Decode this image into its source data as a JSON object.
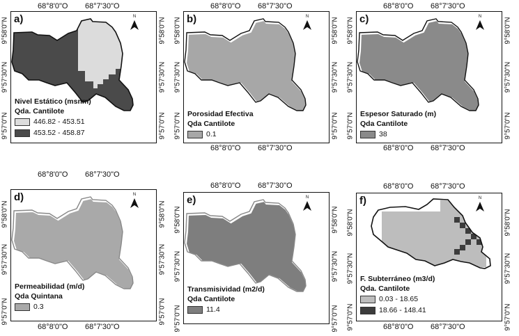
{
  "coordinates": {
    "lon_labels": [
      "68°8'0\"O",
      "68°7'30\"O"
    ],
    "lat_labels": [
      "9°58'0\"N",
      "9°57'30\"N",
      "9°57'0\"N"
    ]
  },
  "colors": {
    "nivel_low": "#dcdcdc",
    "nivel_high": "#4a4a4a",
    "porosidad": "#a7a7a7",
    "espesor": "#8a8a8a",
    "permeabilidad": "#a9a9a9",
    "transmisividad": "#7e7e7e",
    "flujo_low": "#bdbdbd",
    "flujo_high": "#3c3c3c",
    "outline": "#111111",
    "outline_white": "#ffffff"
  },
  "north_label": "N",
  "panels": [
    {
      "id": "a",
      "label": "a)",
      "legend_title": "Nivel Estático (msnm)",
      "legend_subtitle": "Qda. Cantilote",
      "classes": [
        {
          "label": "446.82 - 453.51",
          "color": "#dcdcdc"
        },
        {
          "label": "453.52 - 458.87",
          "color": "#4a4a4a"
        }
      ]
    },
    {
      "id": "b",
      "label": "b)",
      "legend_title": "Porosidad Efectiva",
      "legend_subtitle": "Qda Cantilote",
      "classes": [
        {
          "label": "0.1",
          "color": "#a7a7a7"
        }
      ]
    },
    {
      "id": "c",
      "label": "c)",
      "legend_title": "Espesor Saturado  (m)",
      "legend_subtitle": "Qda Cantilote",
      "classes": [
        {
          "label": "38",
          "color": "#8a8a8a"
        }
      ]
    },
    {
      "id": "d",
      "label": "d)",
      "legend_title": "Permeabilidad (m/d)",
      "legend_subtitle": "Qda Quintana",
      "classes": [
        {
          "label": "0.3",
          "color": "#a9a9a9"
        }
      ]
    },
    {
      "id": "e",
      "label": "e)",
      "legend_title": "Transmisividad (m2/d)",
      "legend_subtitle": "Qda Cantilote",
      "classes": [
        {
          "label": "11.4",
          "color": "#7e7e7e"
        }
      ]
    },
    {
      "id": "f",
      "label": "f)",
      "legend_title": "F. Subterráneo (m3/d)",
      "legend_subtitle": "Qda. Cantilote",
      "classes": [
        {
          "label": "0.03 - 18.65",
          "color": "#bdbdbd"
        },
        {
          "label": "18.66 - 148.41",
          "color": "#3c3c3c"
        }
      ]
    }
  ]
}
